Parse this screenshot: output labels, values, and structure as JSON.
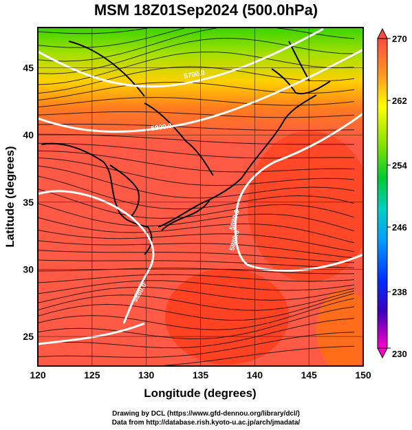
{
  "title": "MSM 18Z01Sep2024 (500.0hPa)",
  "x_axis": {
    "label": "Longitude (degrees)",
    "ticks": [
      "120",
      "125",
      "130",
      "135",
      "140",
      "145",
      "150"
    ]
  },
  "y_axis": {
    "label": "Latitude  (degrees)",
    "ticks": [
      "45",
      "40",
      "35",
      "30",
      "25"
    ]
  },
  "colorbar": {
    "ticks": [
      "270",
      "262",
      "254",
      "246",
      "238",
      "230"
    ]
  },
  "contours": [
    {
      "label": "5700.0"
    },
    {
      "label": "5800.0"
    },
    {
      "label": "5880.0"
    },
    {
      "label": "5880.0"
    },
    {
      "label": "5880.0"
    }
  ],
  "credits": {
    "line1": "Drawing by DCL (https://www.gfd-dennou.org/library/dcl/)",
    "line2": "Data from http://database.rish.kyoto-u.ac.jp/arch/jmadata/"
  },
  "colors": {
    "field_warm": "#ff5a40",
    "field_hot": "#ff3300",
    "field_cool": "#33cc00",
    "contour": "#ffffff",
    "streamline": "#000000"
  }
}
